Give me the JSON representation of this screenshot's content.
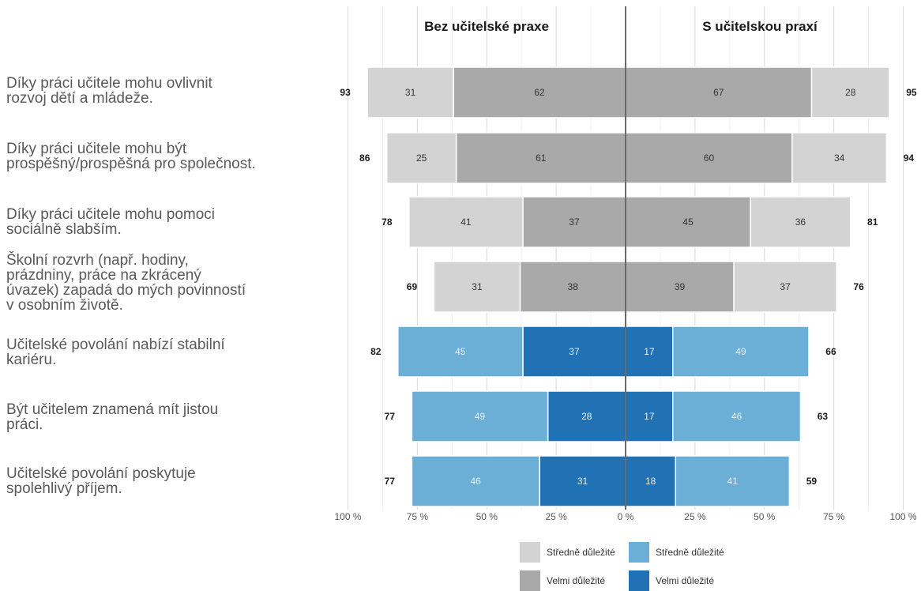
{
  "chart_data": {
    "type": "bar",
    "orientation": "horizontal",
    "stacked": true,
    "diverging": true,
    "categories": [
      "Díky práci učitele mohu ovlivnit rozvoj dětí a mládeže.",
      "Díky práci učitele mohu být prospěšný/prospěšná pro společnost.",
      "Díky práci učitele mohu pomoci sociálně slabším.",
      "Školní rozvrh (např. hodiny, prázdniny, práce na zkrácený úvazek) zapadá do mých povinností v osobním životě.",
      "Učitelské povolání nabízí stabilní kariéru.",
      "Být učitelem znamená mít jistou práci.",
      "Učitelské povolání poskytuje spolehlivý příjem."
    ],
    "category_lines": [
      [
        "Díky práci učitele mohu ovlivnit",
        "rozvoj dětí a mládeže."
      ],
      [
        "Díky práci učitele mohu být",
        "prospěšný/prospěšná pro společnost."
      ],
      [
        "Díky práci učitele mohu pomoci",
        "sociálně slabším."
      ],
      [
        "Školní rozvrh (např. hodiny,",
        "prázdniny, práce na zkrácený",
        "úvazek) zapadá do mých povinností",
        "v osobním životě."
      ],
      [
        "Učitelské povolání nabízí stabilní",
        "kariéru."
      ],
      [
        "Být učitelem znamená mít jistou",
        "práci."
      ],
      [
        "Učitelské povolání poskytuje",
        "spolehlivý příjem."
      ]
    ],
    "panels": [
      {
        "title": "Bez učitelské praxe",
        "direction": "left",
        "stredne": [
          31,
          25,
          41,
          31,
          45,
          49,
          46
        ],
        "velmi": [
          62,
          61,
          37,
          38,
          37,
          28,
          31
        ],
        "totals": [
          93,
          86,
          78,
          69,
          82,
          77,
          77
        ]
      },
      {
        "title": "S učitelskou praxí",
        "direction": "right",
        "stredne": [
          28,
          34,
          36,
          37,
          49,
          46,
          41
        ],
        "velmi": [
          67,
          60,
          45,
          39,
          17,
          17,
          18
        ],
        "totals": [
          95,
          94,
          81,
          76,
          66,
          63,
          59
        ]
      }
    ],
    "color_group": [
      "gray",
      "gray",
      "gray",
      "gray",
      "blue",
      "blue",
      "blue"
    ],
    "colors": {
      "gray_stredne": "#d3d3d3",
      "gray_velmi": "#a9a9a9",
      "blue_stredne": "#6baed6",
      "blue_velmi": "#2171b5",
      "label_dark": "#333333",
      "label_light": "#e8f1fa"
    },
    "x_ticks": [
      "100 %",
      "75 %",
      "50 %",
      "25 %",
      "0 %",
      "25 %",
      "50 %",
      "75 %",
      "100 %"
    ],
    "xlim": [
      -100,
      100
    ],
    "grid": true,
    "legend_position": "bottom",
    "legend": [
      {
        "label": "Středně důležité",
        "color": "#d3d3d3"
      },
      {
        "label": "Středně důležité",
        "color": "#6baed6"
      },
      {
        "label": "Velmi důležité",
        "color": "#a9a9a9"
      },
      {
        "label": "Velmi důležité",
        "color": "#2171b5"
      }
    ]
  }
}
